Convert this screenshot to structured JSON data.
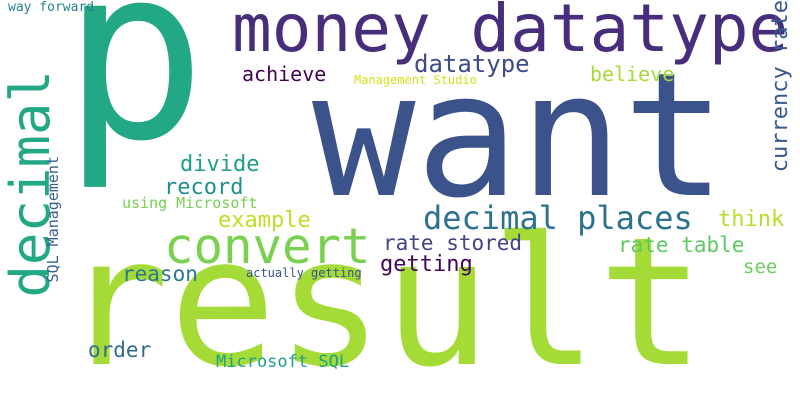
{
  "words": [
    {
      "text": "result",
      "color": "#a5db36"
    },
    {
      "text": "want",
      "color": "#3b528b"
    },
    {
      "text": "p",
      "color": "#22a884"
    },
    {
      "text": "money datatype",
      "color": "#472d7b"
    },
    {
      "text": "convert",
      "color": "#7ad151"
    },
    {
      "text": "decimal",
      "color": "#22a884"
    },
    {
      "text": "decimal places",
      "color": "#2c728e"
    },
    {
      "text": "datatype",
      "color": "#3e4a89"
    },
    {
      "text": "achieve",
      "color": "#440154"
    },
    {
      "text": "believe",
      "color": "#a5db36"
    },
    {
      "text": "currency rate",
      "color": "#38598c"
    },
    {
      "text": "divide",
      "color": "#1f9e89"
    },
    {
      "text": "record",
      "color": "#21908d"
    },
    {
      "text": "example",
      "color": "#bddf26"
    },
    {
      "text": "think",
      "color": "#b5de2b"
    },
    {
      "text": "rate stored",
      "color": "#414487"
    },
    {
      "text": "rate table",
      "color": "#5ec962"
    },
    {
      "text": "getting",
      "color": "#450559"
    },
    {
      "text": "reason",
      "color": "#2a788e"
    },
    {
      "text": "see",
      "color": "#6ccd5a"
    },
    {
      "text": "order",
      "color": "#2f6c8e"
    },
    {
      "text": "Microsoft SQL",
      "color": "#1fa188"
    },
    {
      "text": "using Microsoft",
      "color": "#75d054"
    },
    {
      "text": "SQL Management",
      "color": "#355f8d"
    },
    {
      "text": "actually getting",
      "color": "#3b528b"
    },
    {
      "text": "Management Studio",
      "color": "#d2e21b"
    },
    {
      "text": "way forward",
      "color": "#26828e"
    }
  ]
}
